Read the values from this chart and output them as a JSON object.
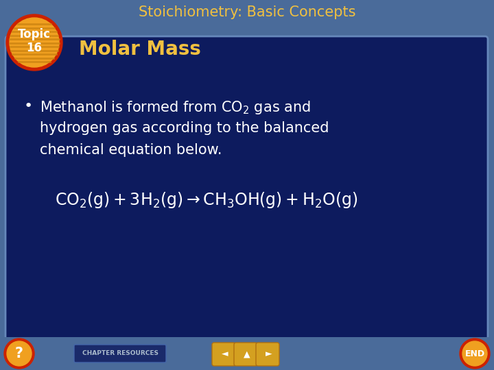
{
  "bg_outer_color": "#4a6b9a",
  "bg_inner_color": "#0d1b5e",
  "title_text": "Stoichiometry: Basic Concepts",
  "title_color": "#f0c040",
  "topic_circle_red": "#cc2200",
  "topic_circle_orange": "#f0a020",
  "topic_stripe_color": "#c88010",
  "topic_text": "Topic\n16",
  "topic_text_color": "white",
  "subtitle_text": "Molar Mass",
  "subtitle_color": "#f0c040",
  "bullet_color": "white",
  "equation_color": "white",
  "inner_border_color": "#6688bb",
  "footer_bg": "#3a5a8a",
  "nav_button_color": "#d4a020",
  "chapter_res_bg": "#1a2a6a",
  "chapter_res_color": "#aabbcc"
}
